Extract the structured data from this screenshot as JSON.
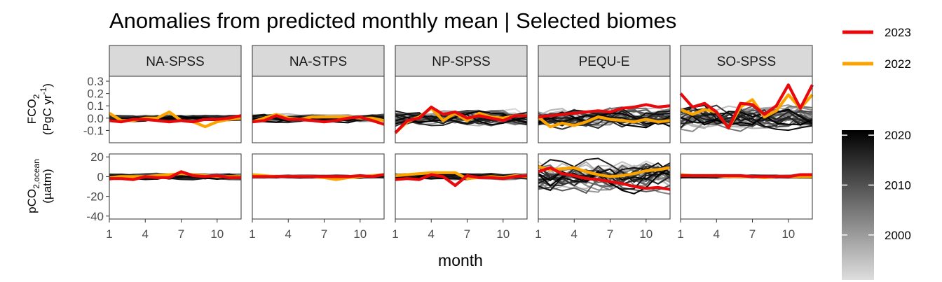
{
  "chart_data": {
    "type": "line",
    "title": "Anomalies from predicted monthly mean | Selected biomes",
    "xlabel": "month",
    "x_ticks": [
      1,
      4,
      7,
      10
    ],
    "xlim": [
      1,
      12
    ],
    "facets": [
      "NA-SPSS",
      "NA-STPS",
      "NP-SPSS",
      "PEQU-E",
      "SO-SPSS"
    ],
    "rows": [
      {
        "ylabel_line1": "FCO",
        "ylabel_line1_sub": "2",
        "ylabel_line2": "(PgC yr",
        "ylabel_line2_sup": "-1",
        "ylabel_line2_end": ")",
        "ylim": [
          -0.2,
          0.34
        ],
        "y_ticks": [
          "0.3",
          "0.2",
          "0.1",
          "0.0",
          "-0.1"
        ],
        "y_tick_values": [
          0.3,
          0.2,
          0.1,
          0.0,
          -0.1
        ],
        "series": {
          "2023": [
            [
              -0.02,
              -0.03,
              -0.01,
              -0.01,
              -0.02,
              -0.03,
              -0.02,
              -0.03,
              -0.01,
              -0.01,
              0.0,
              0.02
            ],
            [
              -0.03,
              -0.02,
              0.02,
              -0.01,
              -0.01,
              -0.02,
              -0.03,
              -0.02,
              0.0,
              0.01,
              -0.02,
              -0.05
            ],
            [
              -0.12,
              -0.02,
              0.0,
              0.09,
              0.03,
              0.05,
              0.0,
              0.02,
              0.0,
              -0.02,
              0.02,
              0.02
            ],
            [
              0.01,
              0.02,
              0.03,
              0.04,
              0.05,
              0.06,
              0.05,
              0.08,
              0.09,
              0.11,
              0.09,
              0.1
            ],
            [
              0.2,
              0.09,
              0.12,
              0.05,
              -0.08,
              0.12,
              0.11,
              0.03,
              0.1,
              0.27,
              0.08,
              0.27
            ]
          ],
          "2022": [
            [
              0.04,
              -0.02,
              -0.02,
              0.0,
              0.0,
              0.05,
              -0.02,
              -0.03,
              -0.07,
              -0.03,
              -0.01,
              0.0
            ],
            [
              -0.03,
              0.0,
              0.03,
              0.0,
              -0.01,
              0.01,
              0.01,
              0.01,
              0.01,
              0.0,
              0.0,
              -0.02
            ],
            [
              -0.12,
              -0.03,
              0.01,
              0.08,
              -0.02,
              0.04,
              -0.02,
              0.04,
              0.01,
              0.0,
              0.02,
              0.02
            ],
            [
              0.01,
              -0.07,
              -0.04,
              -0.06,
              -0.03,
              0.01,
              -0.01,
              -0.02,
              -0.03,
              -0.01,
              -0.03,
              -0.02
            ],
            [
              0.07,
              0.03,
              0.07,
              0.05,
              -0.08,
              0.09,
              0.15,
              0.01,
              0.06,
              0.19,
              0.08,
              0.19
            ]
          ]
        }
      },
      {
        "ylabel_line1": "pCO",
        "ylabel_line1_sub": "2,ocean",
        "ylabel_line2": "(µatm)",
        "ylim": [
          -43,
          23
        ],
        "y_ticks": [
          "20",
          "0",
          "-20",
          "-40"
        ],
        "y_tick_values": [
          20,
          0,
          -20,
          -40
        ],
        "series": {
          "2023": [
            [
              -2,
              -2,
              -3,
              0,
              -1,
              -1,
              5,
              1,
              0,
              1,
              -1,
              -1
            ],
            [
              0,
              0,
              0,
              0,
              0,
              0,
              0,
              0,
              0,
              1,
              0,
              2
            ],
            [
              -3,
              -2,
              -3,
              2,
              0,
              -9,
              1,
              -1,
              -1,
              -2,
              0,
              1
            ],
            [
              5,
              9,
              3,
              1,
              -2,
              -3,
              -5,
              -7,
              -10,
              -12,
              -11,
              -13
            ],
            [
              1,
              1,
              1,
              1,
              1,
              1,
              0,
              0,
              0,
              0,
              2,
              2
            ]
          ],
          "2022": [
            [
              -1,
              0,
              0,
              0,
              1,
              2,
              3,
              2,
              1,
              0,
              0,
              0
            ],
            [
              2,
              1,
              0,
              0,
              0,
              0,
              -1,
              -3,
              -1,
              0,
              1,
              2
            ],
            [
              1,
              2,
              3,
              4,
              4,
              4,
              -2,
              -1,
              0,
              -1,
              1,
              0
            ],
            [
              10,
              7,
              8,
              9,
              5,
              2,
              0,
              1,
              3,
              6,
              7,
              9
            ],
            [
              2,
              1,
              1,
              1,
              0,
              0,
              0,
              -1,
              0,
              0,
              0,
              0
            ]
          ]
        }
      }
    ],
    "legend": {
      "highlighted": [
        {
          "name": "2023",
          "color": "#e8090d"
        },
        {
          "name": "2022",
          "color": "#fba400"
        }
      ],
      "colorbar": {
        "ticks": [
          "2020",
          "2010",
          "2000"
        ],
        "tick_values": [
          2020,
          2010,
          2000
        ],
        "range": [
          1991,
          2021
        ],
        "low_color": "#dedede",
        "high_color": "#000000"
      }
    },
    "background_years": [
      1992,
      1993,
      1994,
      1995,
      1996,
      1997,
      1998,
      1999,
      2000,
      2001,
      2002,
      2003,
      2004,
      2005,
      2006,
      2007,
      2008,
      2009,
      2010,
      2011,
      2012,
      2013,
      2014,
      2015,
      2016,
      2017,
      2018,
      2019,
      2020,
      2021
    ]
  }
}
